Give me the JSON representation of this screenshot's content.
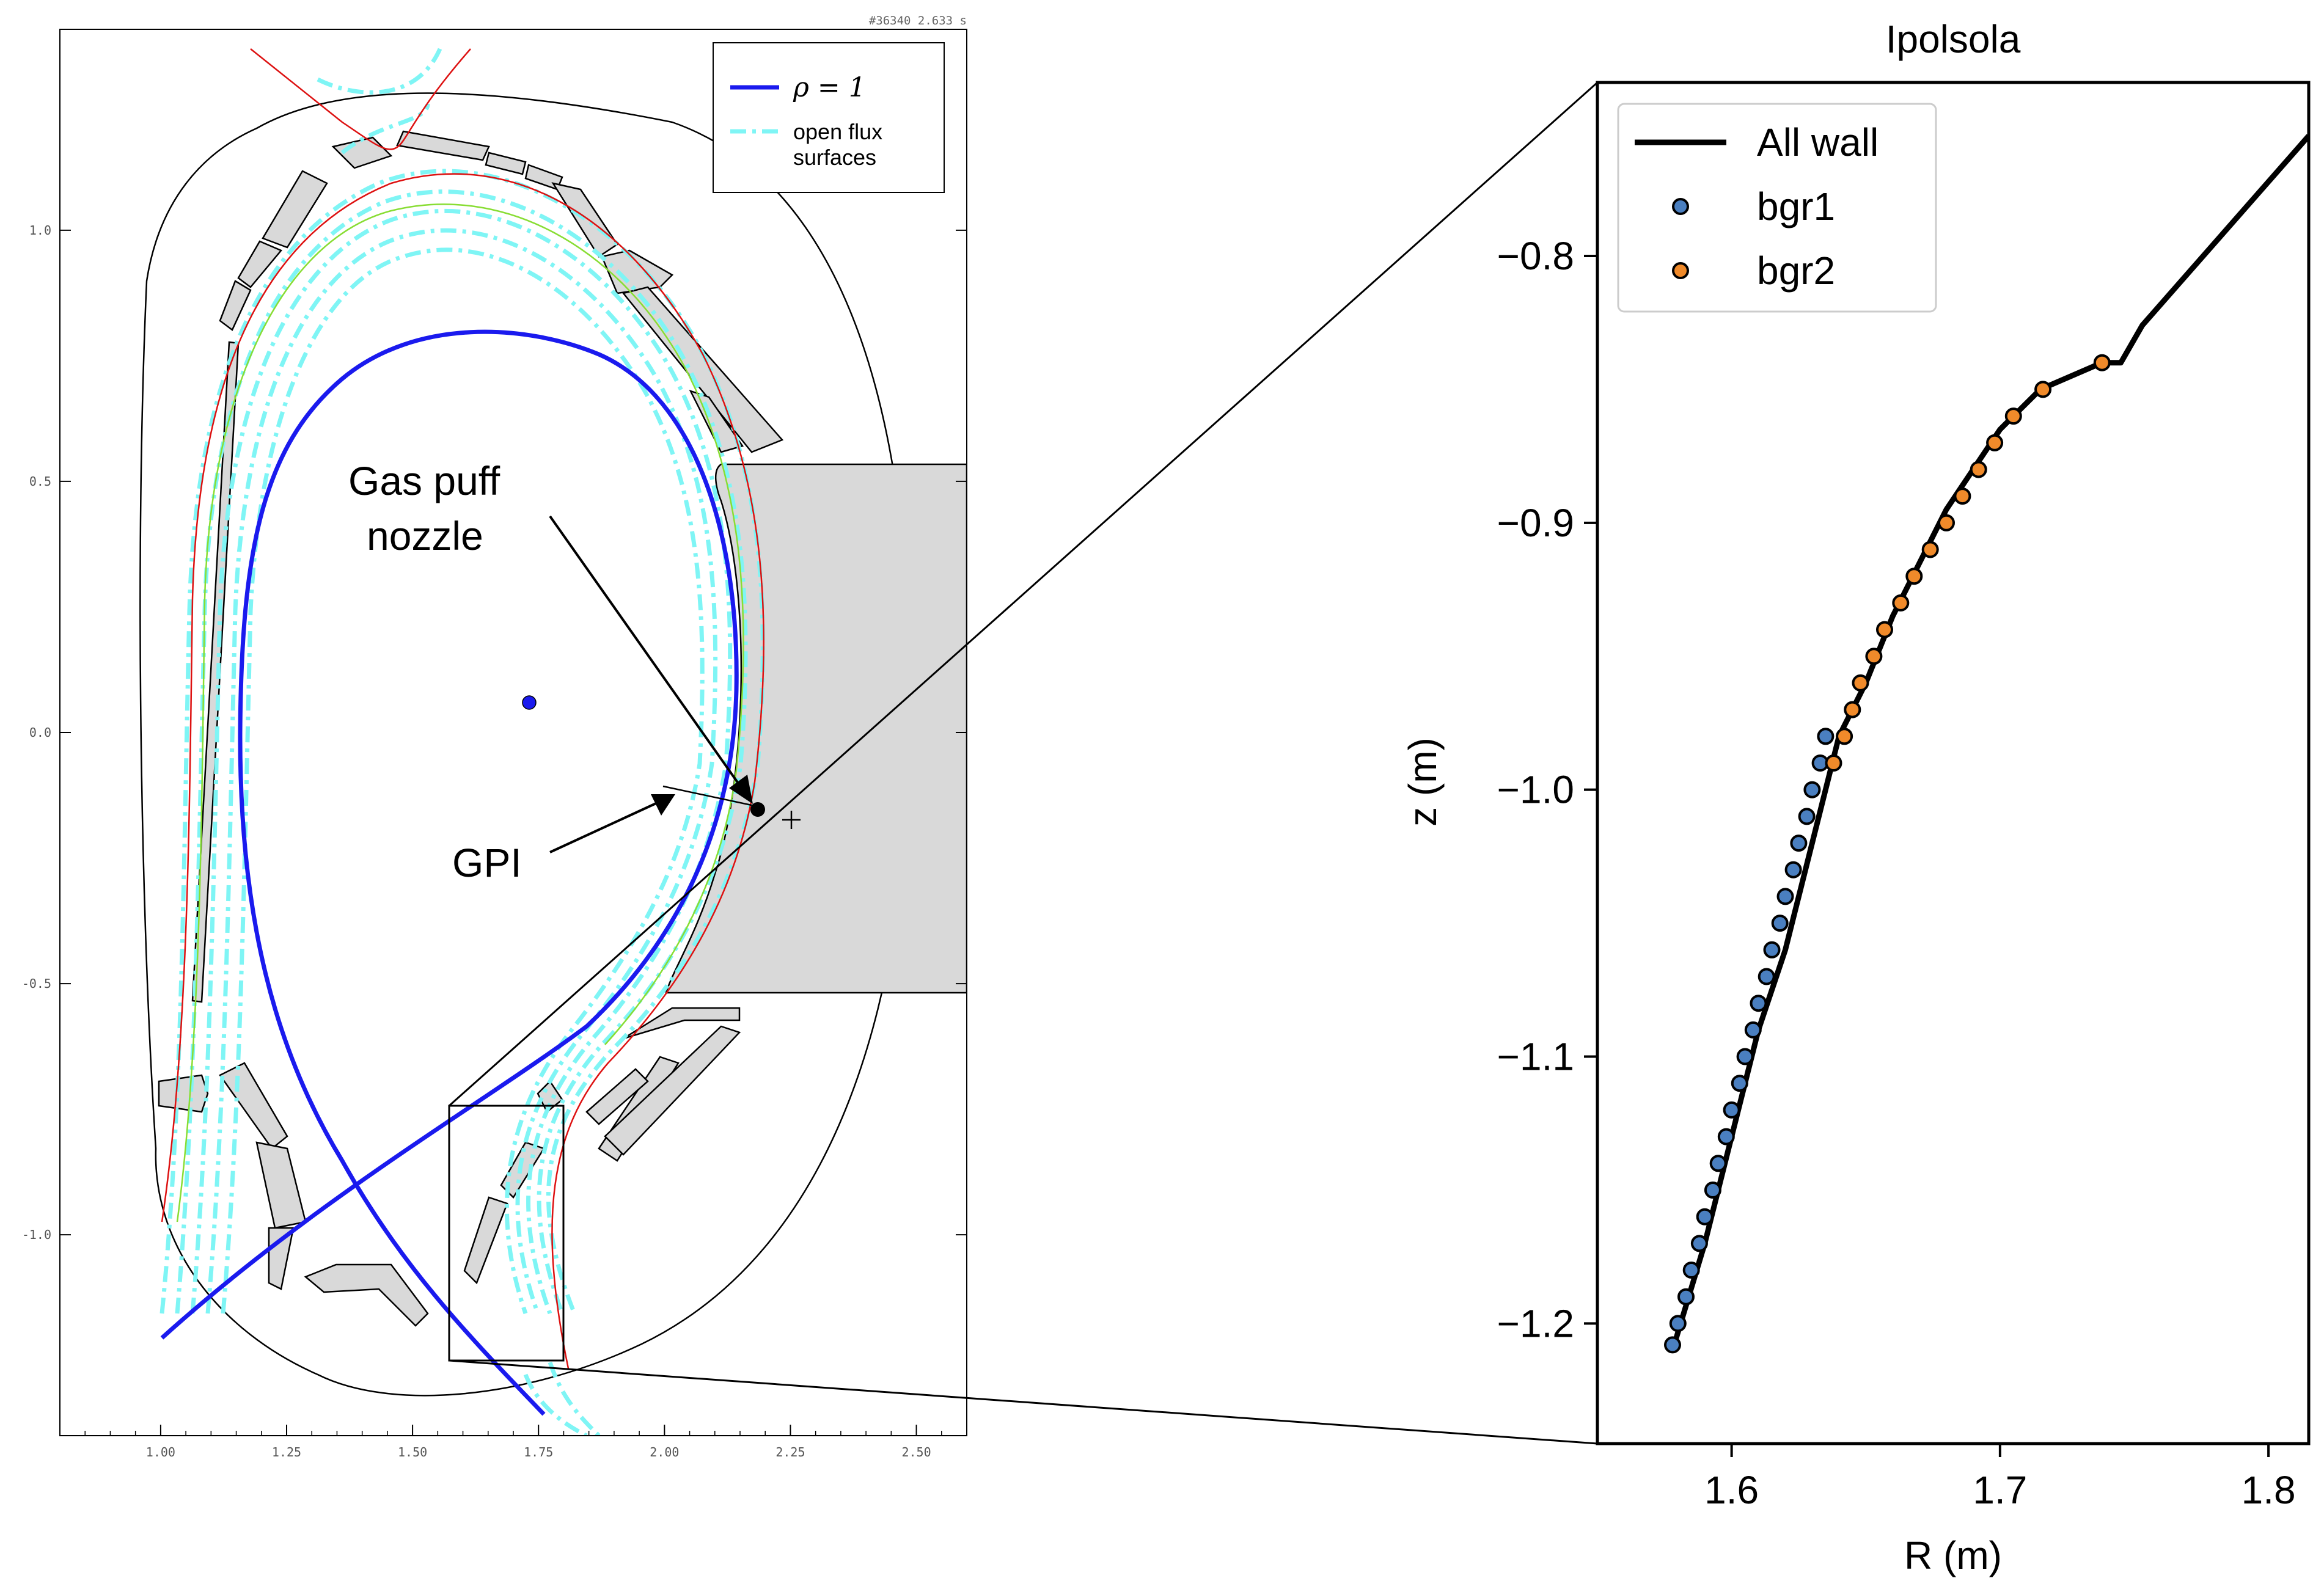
{
  "colors": {
    "rho_boundary": "#1a1aee",
    "open_flux": "#7ff5f5",
    "separatrix": "#dd1111",
    "green_surface": "#88dd33",
    "vessel_fill": "#d9d9d9",
    "bgr1": "#4a7fc0",
    "bgr2": "#f08a2a",
    "wall": "#000000"
  },
  "left_panel": {
    "shot_label": "#36340 2.633 s",
    "x_ticks": [
      {
        "v": 1.0,
        "label": "1.00"
      },
      {
        "v": 1.25,
        "label": "1.25"
      },
      {
        "v": 1.5,
        "label": "1.50"
      },
      {
        "v": 1.75,
        "label": "1.75"
      },
      {
        "v": 2.0,
        "label": "2.00"
      },
      {
        "v": 2.25,
        "label": "2.25"
      },
      {
        "v": 2.5,
        "label": "2.50"
      }
    ],
    "y_ticks": [
      {
        "v": 1.0,
        "label": "1.0"
      },
      {
        "v": 0.5,
        "label": "0.5"
      },
      {
        "v": 0.0,
        "label": "0.0"
      },
      {
        "v": -0.5,
        "label": "-0.5"
      },
      {
        "v": -1.0,
        "label": "-1.0"
      }
    ],
    "legend": {
      "rho_label": "ρ = 1",
      "open_flux_line1": "open flux",
      "open_flux_line2": "surfaces"
    },
    "annotations": {
      "gas_puff_line1": "Gas puff",
      "gas_puff_line2": "nozzle",
      "gpi": "GPI"
    }
  },
  "chart_data": [
    {
      "type": "line",
      "title": "",
      "xlabel": "",
      "ylabel": "",
      "xlim": [
        0.8,
        2.6
      ],
      "ylim": [
        -1.4,
        1.4
      ],
      "series": [
        {
          "name": "ρ = 1",
          "style": "solid",
          "color": "#1a1aee"
        },
        {
          "name": "open flux surfaces",
          "style": "dash-dot",
          "color": "#7ff5f5"
        }
      ],
      "magnetic_axis": {
        "R": 1.74,
        "z": 0.06
      },
      "gas_puff_nozzle": {
        "R": 2.19,
        "z": -0.16
      },
      "zoom_box": {
        "R": [
          1.58,
          1.81
        ],
        "z": [
          -1.25,
          -0.75
        ]
      }
    },
    {
      "type": "line",
      "title": "Ipolsola",
      "xlabel": "R (m)",
      "ylabel": "z (m)",
      "xlim": [
        1.55,
        1.815
      ],
      "ylim": [
        -1.245,
        -0.735
      ],
      "x_ticks": [
        1.6,
        1.7,
        1.8
      ],
      "x_tick_labels": [
        "1.6",
        "1.7",
        "1.8"
      ],
      "y_ticks": [
        -0.8,
        -0.9,
        -1.0,
        -1.1,
        -1.2
      ],
      "y_tick_labels": [
        "−0.8",
        "−0.9",
        "−1.0",
        "−1.1",
        "−1.2"
      ],
      "legend_position": "upper-left",
      "series": [
        {
          "name": "All wall",
          "type": "line",
          "x": [
            1.578,
            1.59,
            1.6,
            1.61,
            1.62,
            1.63,
            1.64,
            1.65,
            1.66,
            1.67,
            1.68,
            1.69,
            1.7,
            1.705,
            1.715,
            1.738,
            1.745,
            1.753,
            1.815
          ],
          "y": [
            -1.21,
            -1.17,
            -1.13,
            -1.09,
            -1.06,
            -1.02,
            -0.98,
            -0.96,
            -0.935,
            -0.915,
            -0.895,
            -0.88,
            -0.865,
            -0.86,
            -0.85,
            -0.84,
            -0.84,
            -0.826,
            -0.755
          ]
        },
        {
          "name": "bgr1",
          "type": "scatter",
          "x": [
            1.578,
            1.58,
            1.583,
            1.585,
            1.588,
            1.59,
            1.593,
            1.595,
            1.598,
            1.6,
            1.603,
            1.605,
            1.608,
            1.61,
            1.613,
            1.615,
            1.618,
            1.62,
            1.623,
            1.625,
            1.628,
            1.63,
            1.633,
            1.635
          ],
          "y": [
            -1.208,
            -1.2,
            -1.19,
            -1.18,
            -1.17,
            -1.16,
            -1.15,
            -1.14,
            -1.13,
            -1.12,
            -1.11,
            -1.1,
            -1.09,
            -1.08,
            -1.07,
            -1.06,
            -1.05,
            -1.04,
            -1.03,
            -1.02,
            -1.01,
            -1.0,
            -0.99,
            -0.98
          ]
        },
        {
          "name": "bgr2",
          "type": "scatter",
          "x": [
            1.638,
            1.642,
            1.645,
            1.648,
            1.653,
            1.657,
            1.663,
            1.668,
            1.674,
            1.68,
            1.686,
            1.692,
            1.698,
            1.705,
            1.716,
            1.738
          ],
          "y": [
            -0.99,
            -0.98,
            -0.97,
            -0.96,
            -0.95,
            -0.94,
            -0.93,
            -0.92,
            -0.91,
            -0.9,
            -0.89,
            -0.88,
            -0.87,
            -0.86,
            -0.85,
            -0.84
          ]
        }
      ]
    }
  ]
}
